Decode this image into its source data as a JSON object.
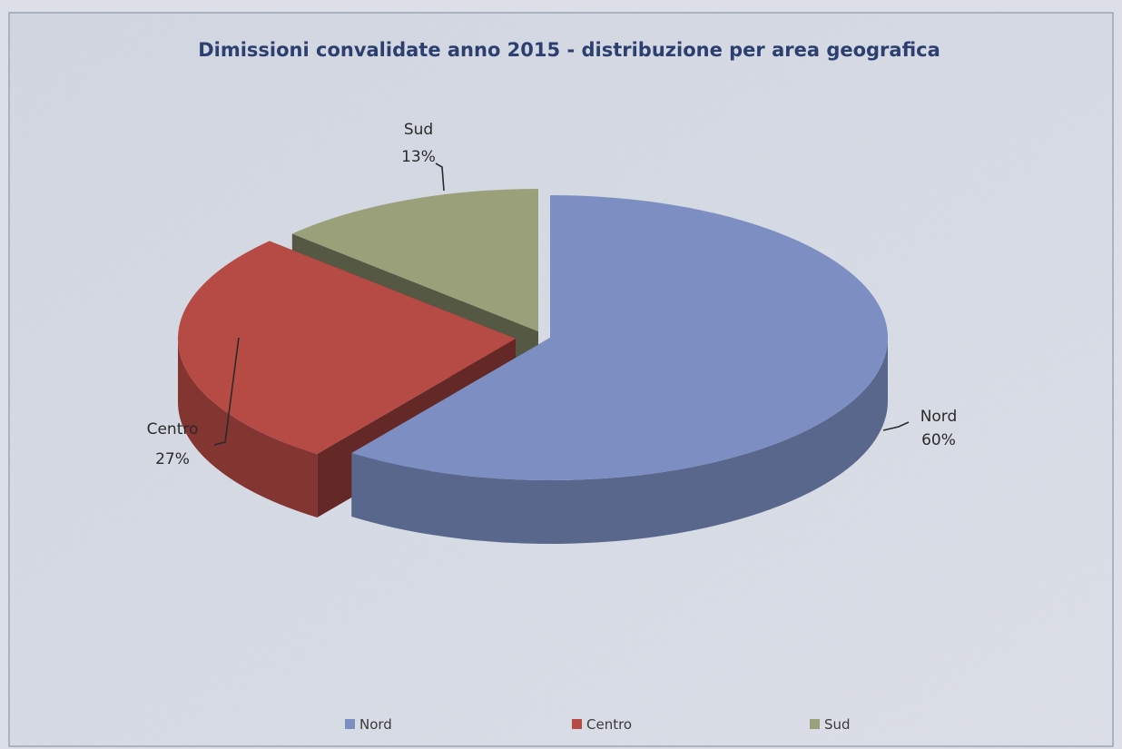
{
  "chart_data": {
    "type": "pie",
    "title": "Dimissioni convalidate anno 2015 - distribuzione per area geografica",
    "categories": [
      "Nord",
      "Centro",
      "Sud"
    ],
    "values": [
      60,
      27,
      13
    ],
    "value_labels": [
      "60%",
      "27%",
      "13%"
    ],
    "colors": [
      "#7d8fc2",
      "#b64a45",
      "#9aa079"
    ],
    "style": "3d-exploded",
    "legend": {
      "position": "bottom",
      "entries": [
        "Nord",
        "Centro",
        "Sud"
      ]
    }
  }
}
